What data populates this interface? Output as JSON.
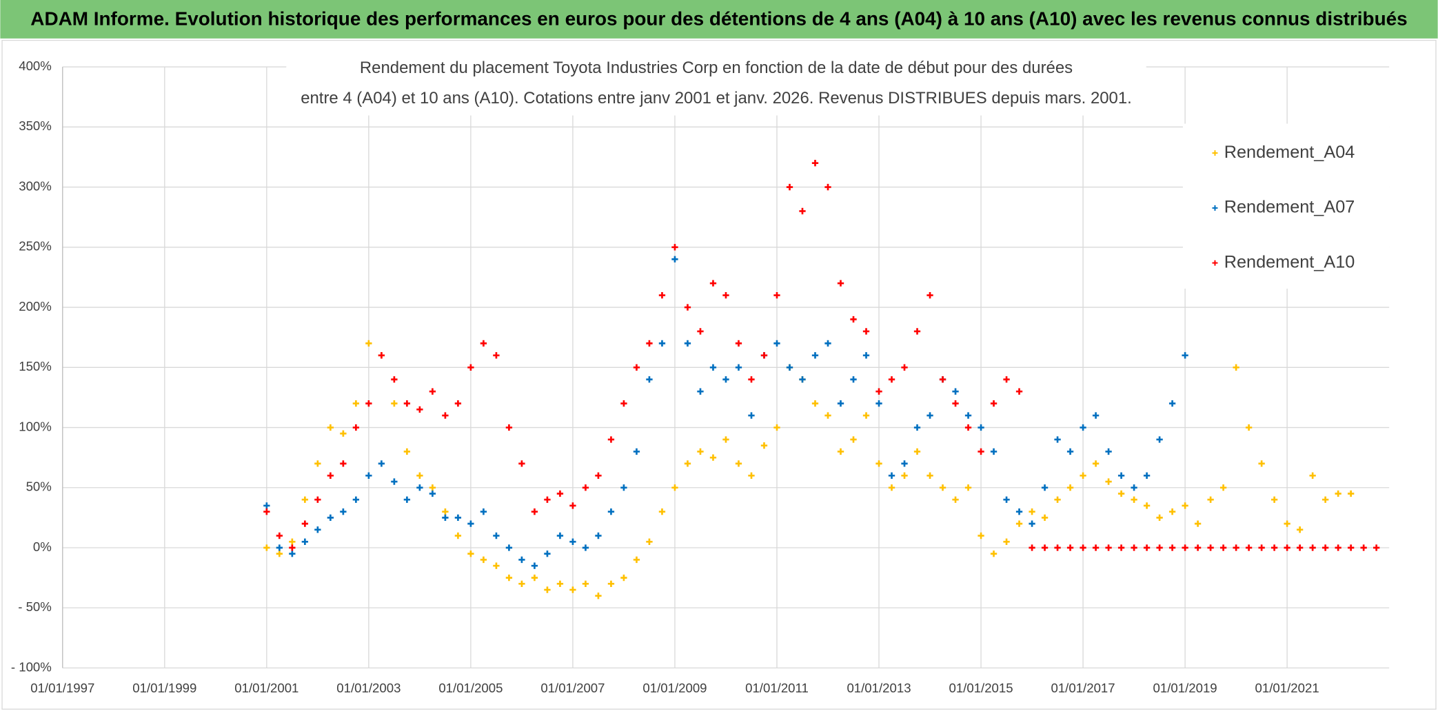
{
  "header": "ADAM Informe. Evolution historique des performances en euros pour des détentions de 4 ans (A04) à 10 ans (A10) avec les revenus connus distribués",
  "chart_data": {
    "type": "scatter",
    "title": [
      "Rendement du placement Toyota Industries Corp en fonction de la date de début pour des durées",
      "entre 4 (A04) et 10 ans (A10). Cotations entre janv 2001 et janv. 2026. Revenus DISTRIBUES depuis mars. 2001."
    ],
    "xlim": [
      "01/01/1997",
      "01/01/2023"
    ],
    "xticks": [
      "01/01/1997",
      "01/01/1999",
      "01/01/2001",
      "01/01/2003",
      "01/01/2005",
      "01/01/2007",
      "01/01/2009",
      "01/01/2011",
      "01/01/2013",
      "01/01/2015",
      "01/01/2017",
      "01/01/2019",
      "01/01/2021"
    ],
    "ylim": [
      -100,
      400
    ],
    "yticks": [
      {
        "value": 400,
        "label": "400%"
      },
      {
        "value": 350,
        "label": "350%"
      },
      {
        "value": 300,
        "label": "300%"
      },
      {
        "value": 250,
        "label": "250%"
      },
      {
        "value": 200,
        "label": "200%"
      },
      {
        "value": 150,
        "label": "150%"
      },
      {
        "value": 100,
        "label": "100%"
      },
      {
        "value": 50,
        "label": "50%"
      },
      {
        "value": 0,
        "label": "0%"
      },
      {
        "value": -50,
        "label": "- 50%"
      },
      {
        "value": -100,
        "label": "- 100%"
      }
    ],
    "grid": true,
    "legend": "right",
    "series": [
      {
        "name": "Rendement_A04",
        "color": "#ffc000",
        "x": [
          "01/01/2001",
          "01/04/2001",
          "01/07/2001",
          "01/10/2001",
          "01/01/2002",
          "01/04/2002",
          "01/07/2002",
          "01/10/2002",
          "01/01/2003",
          "01/04/2003",
          "01/07/2003",
          "01/10/2003",
          "01/01/2004",
          "01/04/2004",
          "01/07/2004",
          "01/10/2004",
          "01/01/2005",
          "01/04/2005",
          "01/07/2005",
          "01/10/2005",
          "01/01/2006",
          "01/04/2006",
          "01/07/2006",
          "01/10/2006",
          "01/01/2007",
          "01/04/2007",
          "01/07/2007",
          "01/10/2007",
          "01/01/2008",
          "01/04/2008",
          "01/07/2008",
          "01/10/2008",
          "01/01/2009",
          "01/04/2009",
          "01/07/2009",
          "01/10/2009",
          "01/01/2010",
          "01/04/2010",
          "01/07/2010",
          "01/10/2010",
          "01/01/2011",
          "01/04/2011",
          "01/07/2011",
          "01/10/2011",
          "01/01/2012",
          "01/04/2012",
          "01/07/2012",
          "01/10/2012",
          "01/01/2013",
          "01/04/2013",
          "01/07/2013",
          "01/10/2013",
          "01/01/2014",
          "01/04/2014",
          "01/07/2014",
          "01/10/2014",
          "01/01/2015",
          "01/04/2015",
          "01/07/2015",
          "01/10/2015",
          "01/01/2016",
          "01/04/2016",
          "01/07/2016",
          "01/10/2016",
          "01/01/2017",
          "01/04/2017",
          "01/07/2017",
          "01/10/2017",
          "01/01/2018",
          "01/04/2018",
          "01/07/2018",
          "01/10/2018",
          "01/01/2019",
          "01/04/2019",
          "01/07/2019",
          "01/10/2019",
          "01/01/2020",
          "01/04/2020",
          "01/07/2020",
          "01/10/2020",
          "01/01/2021",
          "01/04/2021",
          "01/07/2021",
          "01/10/2021",
          "01/01/2022",
          "01/04/2022"
        ],
        "values": [
          0,
          -5,
          5,
          40,
          70,
          100,
          95,
          120,
          170,
          160,
          120,
          80,
          60,
          50,
          30,
          10,
          -5,
          -10,
          -15,
          -25,
          -30,
          -25,
          -35,
          -30,
          -35,
          -30,
          -40,
          -30,
          -25,
          -10,
          5,
          30,
          50,
          70,
          80,
          75,
          90,
          70,
          60,
          85,
          100,
          150,
          140,
          120,
          110,
          80,
          90,
          110,
          70,
          50,
          60,
          80,
          60,
          50,
          40,
          50,
          10,
          -5,
          5,
          20,
          30,
          25,
          40,
          50,
          60,
          70,
          55,
          45,
          40,
          35,
          25,
          30,
          35,
          20,
          40,
          50,
          150,
          100,
          70,
          40,
          20,
          15,
          60,
          40,
          45,
          45
        ]
      },
      {
        "name": "Rendement_A07",
        "color": "#0070c0",
        "x": [
          "01/01/2001",
          "01/04/2001",
          "01/07/2001",
          "01/10/2001",
          "01/01/2002",
          "01/04/2002",
          "01/07/2002",
          "01/10/2002",
          "01/01/2003",
          "01/04/2003",
          "01/07/2003",
          "01/10/2003",
          "01/01/2004",
          "01/04/2004",
          "01/07/2004",
          "01/10/2004",
          "01/01/2005",
          "01/04/2005",
          "01/07/2005",
          "01/10/2005",
          "01/01/2006",
          "01/04/2006",
          "01/07/2006",
          "01/10/2006",
          "01/01/2007",
          "01/04/2007",
          "01/07/2007",
          "01/10/2007",
          "01/01/2008",
          "01/04/2008",
          "01/07/2008",
          "01/10/2008",
          "01/01/2009",
          "01/04/2009",
          "01/07/2009",
          "01/10/2009",
          "01/01/2010",
          "01/04/2010",
          "01/07/2010",
          "01/10/2010",
          "01/01/2011",
          "01/04/2011",
          "01/07/2011",
          "01/10/2011",
          "01/01/2012",
          "01/04/2012",
          "01/07/2012",
          "01/10/2012",
          "01/01/2013",
          "01/04/2013",
          "01/07/2013",
          "01/10/2013",
          "01/01/2014",
          "01/04/2014",
          "01/07/2014",
          "01/10/2014",
          "01/01/2015",
          "01/04/2015",
          "01/07/2015",
          "01/10/2015",
          "01/01/2016",
          "01/04/2016",
          "01/07/2016",
          "01/10/2016",
          "01/01/2017",
          "01/04/2017",
          "01/07/2017",
          "01/10/2017",
          "01/01/2018",
          "01/04/2018",
          "01/07/2018",
          "01/10/2018",
          "01/01/2019"
        ],
        "values": [
          35,
          0,
          -5,
          5,
          15,
          25,
          30,
          40,
          60,
          70,
          55,
          40,
          50,
          45,
          25,
          25,
          20,
          30,
          10,
          0,
          -10,
          -15,
          -5,
          10,
          5,
          0,
          10,
          30,
          50,
          80,
          140,
          170,
          240,
          170,
          130,
          150,
          140,
          150,
          110,
          160,
          170,
          150,
          140,
          160,
          170,
          120,
          140,
          160,
          120,
          60,
          70,
          100,
          110,
          140,
          130,
          110,
          100,
          80,
          40,
          30,
          20,
          50,
          90,
          80,
          100,
          110,
          80,
          60,
          50,
          60,
          90,
          120,
          160
        ]
      },
      {
        "name": "Rendement_A10",
        "color": "#ff0000",
        "x": [
          "01/01/2001",
          "01/04/2001",
          "01/07/2001",
          "01/10/2001",
          "01/01/2002",
          "01/04/2002",
          "01/07/2002",
          "01/10/2002",
          "01/01/2003",
          "01/04/2003",
          "01/07/2003",
          "01/10/2003",
          "01/01/2004",
          "01/04/2004",
          "01/07/2004",
          "01/10/2004",
          "01/01/2005",
          "01/04/2005",
          "01/07/2005",
          "01/10/2005",
          "01/01/2006",
          "01/04/2006",
          "01/07/2006",
          "01/10/2006",
          "01/01/2007",
          "01/04/2007",
          "01/07/2007",
          "01/10/2007",
          "01/01/2008",
          "01/04/2008",
          "01/07/2008",
          "01/10/2008",
          "01/01/2009",
          "01/04/2009",
          "01/07/2009",
          "01/10/2009",
          "01/01/2010",
          "01/04/2010",
          "01/07/2010",
          "01/10/2010",
          "01/01/2011",
          "01/04/2011",
          "01/07/2011",
          "01/10/2011",
          "01/01/2012",
          "01/04/2012",
          "01/07/2012",
          "01/10/2012",
          "01/01/2013",
          "01/04/2013",
          "01/07/2013",
          "01/10/2013",
          "01/01/2014",
          "01/04/2014",
          "01/07/2014",
          "01/10/2014",
          "01/01/2015",
          "01/04/2015",
          "01/07/2015",
          "01/10/2015",
          "01/01/2016",
          "01/04/2016",
          "01/07/2016",
          "01/10/2016",
          "01/01/2017",
          "01/04/2017",
          "01/07/2017",
          "01/10/2017",
          "01/01/2018",
          "01/04/2018",
          "01/07/2018",
          "01/10/2018",
          "01/01/2019",
          "01/04/2019",
          "01/07/2019",
          "01/10/2019",
          "01/01/2020",
          "01/04/2020",
          "01/07/2020",
          "01/10/2020",
          "01/01/2021",
          "01/04/2021",
          "01/07/2021",
          "01/10/2021",
          "01/01/2022",
          "01/04/2022",
          "01/07/2022",
          "01/10/2022"
        ],
        "values": [
          30,
          10,
          0,
          20,
          40,
          60,
          70,
          100,
          120,
          160,
          140,
          120,
          115,
          130,
          110,
          120,
          150,
          170,
          160,
          100,
          70,
          30,
          40,
          45,
          35,
          50,
          60,
          90,
          120,
          150,
          170,
          210,
          250,
          200,
          180,
          220,
          210,
          170,
          140,
          160,
          210,
          300,
          280,
          320,
          300,
          220,
          190,
          180,
          130,
          140,
          150,
          180,
          210,
          140,
          120,
          100,
          80,
          120,
          140,
          130,
          0,
          0,
          0,
          0,
          0,
          0,
          0,
          0,
          0,
          0,
          0,
          0,
          0,
          0,
          0,
          0,
          0,
          0,
          0,
          0,
          0,
          0,
          0,
          0,
          0,
          0,
          0,
          0
        ]
      }
    ]
  }
}
